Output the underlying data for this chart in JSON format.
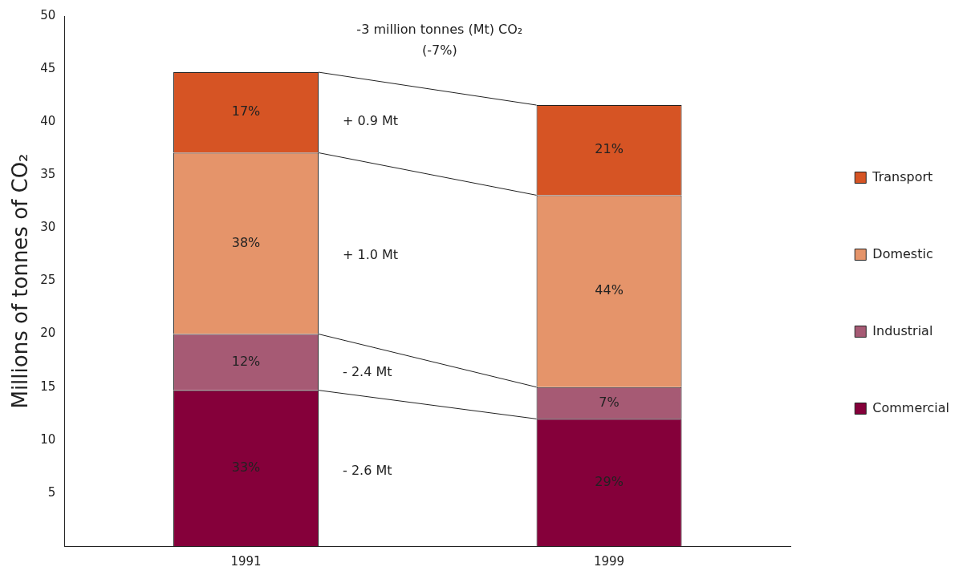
{
  "chart_data": {
    "type": "bar",
    "stacked": true,
    "categories": [
      "1991",
      "1999"
    ],
    "series": [
      {
        "name": "Commercial",
        "color": "#85003a",
        "values": [
          14.7,
          12.0
        ]
      },
      {
        "name": "Industrial",
        "color": "#a65a74",
        "values": [
          5.3,
          3.0
        ]
      },
      {
        "name": "Domestic",
        "color": "#e5946a",
        "values": [
          17.1,
          18.1
        ]
      },
      {
        "name": "Transport",
        "color": "#d65424",
        "values": [
          7.6,
          8.5
        ]
      }
    ],
    "ylabel": "Millions of tonnes of CO₂",
    "ylim": [
      0,
      50
    ],
    "yticks": [
      5,
      10,
      15,
      20,
      25,
      30,
      35,
      40,
      45,
      50
    ],
    "grid": false,
    "legend": "right",
    "annotations": [
      "-3 million tonnes (Mt) CO₂",
      "(-7%)",
      "+ 0.9 Mt",
      "+ 1.0 Mt",
      "- 2.4 Mt",
      "- 2.6 Mt",
      "33%",
      "12%",
      "38%",
      "17%",
      "29%",
      "7%",
      "44%",
      "21%"
    ]
  }
}
